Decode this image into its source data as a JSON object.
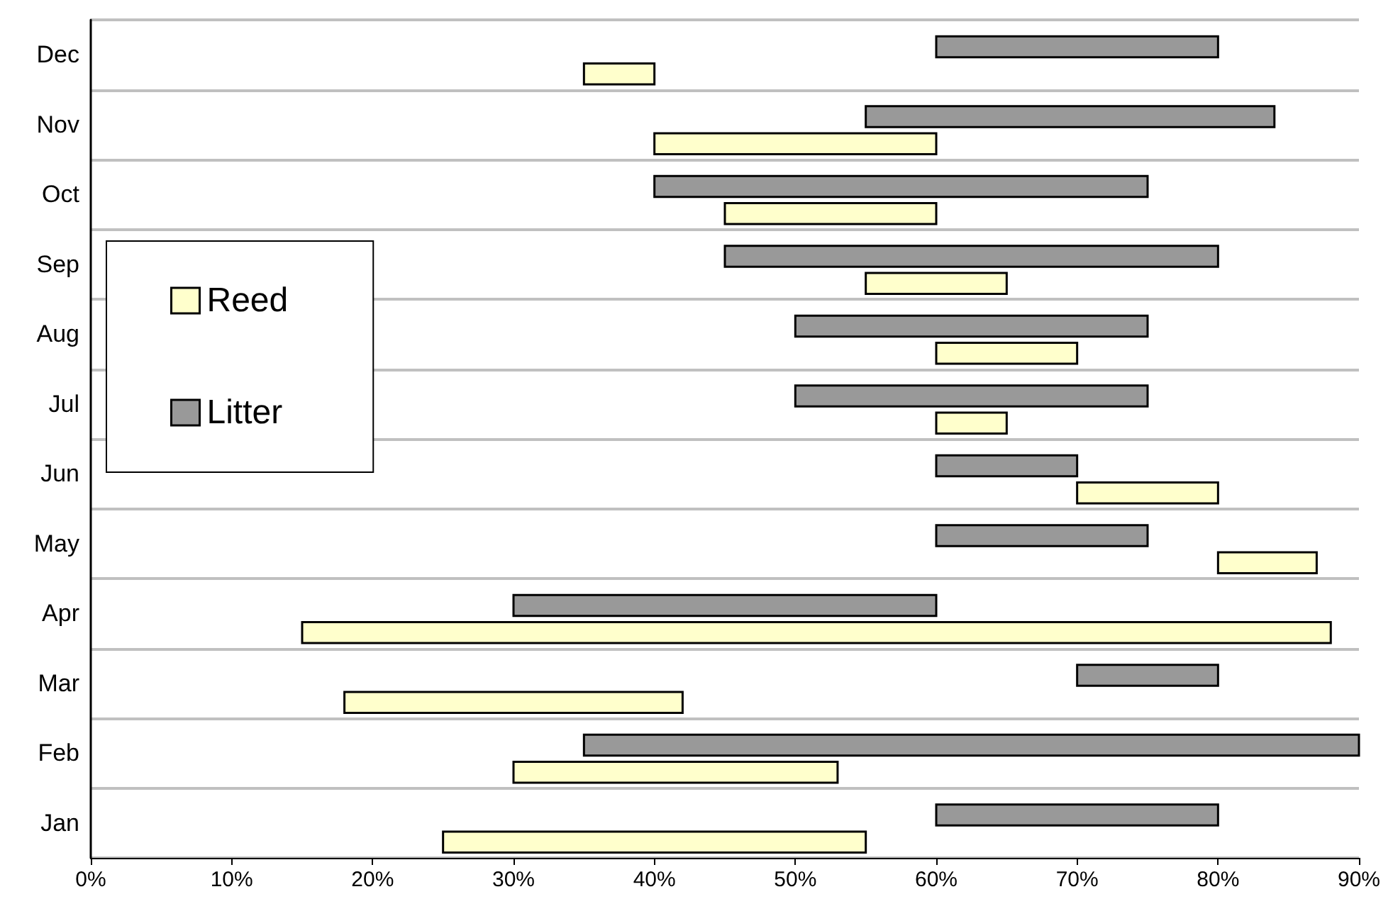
{
  "chart_data": {
    "type": "bar",
    "orientation": "horizontal",
    "categories": [
      "Dec",
      "Nov",
      "Oct",
      "Sep",
      "Aug",
      "Jul",
      "Jun",
      "May",
      "Apr",
      "Mar",
      "Feb",
      "Jan"
    ],
    "series": [
      {
        "name": "Reed",
        "color": "#ffffcc",
        "base": [
          35,
          40,
          45,
          55,
          60,
          60,
          70,
          80,
          15,
          18,
          30,
          25
        ],
        "values": [
          5,
          20,
          15,
          10,
          10,
          5,
          10,
          7,
          73,
          24,
          23,
          30
        ]
      },
      {
        "name": "Litter",
        "color": "#999999",
        "base": [
          60,
          55,
          40,
          45,
          50,
          50,
          60,
          60,
          30,
          70,
          35,
          60
        ],
        "values": [
          20,
          29,
          35,
          35,
          25,
          25,
          10,
          15,
          30,
          10,
          55,
          20
        ]
      }
    ],
    "xlim": [
      0,
      90
    ],
    "xticks": [
      {
        "value": 0,
        "label": "0%"
      },
      {
        "value": 10,
        "label": "10%"
      },
      {
        "value": 20,
        "label": "20%"
      },
      {
        "value": 30,
        "label": "30%"
      },
      {
        "value": 40,
        "label": "40%"
      },
      {
        "value": 50,
        "label": "50%"
      },
      {
        "value": 60,
        "label": "60%"
      },
      {
        "value": 70,
        "label": "70%"
      },
      {
        "value": 80,
        "label": "80%"
      },
      {
        "value": 90,
        "label": "90%"
      }
    ],
    "grid": "y",
    "legend": "left"
  }
}
